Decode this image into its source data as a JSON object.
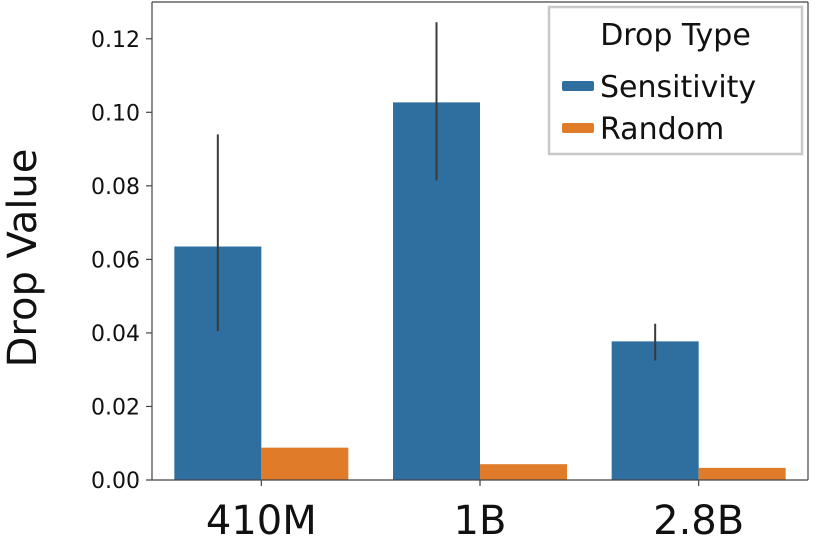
{
  "chart_data": {
    "type": "bar",
    "categories": [
      "410M",
      "1B",
      "2.8B"
    ],
    "series": [
      {
        "name": "Sensitivity",
        "values": [
          0.0635,
          0.1027,
          0.0377
        ],
        "error_low": [
          0.0405,
          0.0815,
          0.0325
        ],
        "error_high": [
          0.094,
          0.1245,
          0.0425
        ]
      },
      {
        "name": "Random",
        "values": [
          0.0088,
          0.0043,
          0.0033
        ]
      }
    ],
    "xlabel": "",
    "ylabel": "Drop Value",
    "ylim": [
      0,
      0.13
    ],
    "yticks": [
      "0.00",
      "0.02",
      "0.04",
      "0.06",
      "0.08",
      "0.10",
      "0.12"
    ],
    "ytick_values": [
      0,
      0.02,
      0.04,
      0.06,
      0.08,
      0.1,
      0.12
    ],
    "legend": {
      "title": "Drop Type",
      "placement": "top-right",
      "entries": [
        "Sensitivity",
        "Random"
      ]
    },
    "colors": {
      "Sensitivity": "#2f6f9f",
      "Random": "#e07b2a",
      "error_bar": "#3a3a3a",
      "axis": "#444444",
      "legend_border": "#c8c8c8"
    },
    "grid": false
  }
}
